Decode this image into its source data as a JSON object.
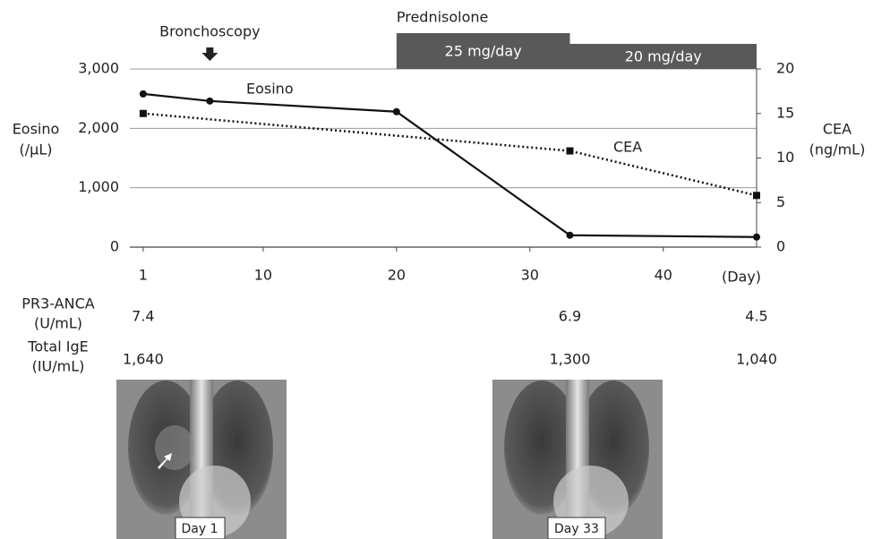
{
  "chart_data": {
    "type": "line",
    "x_label": "(Day)",
    "y_label": [
      "Eosino",
      "(/μL)"
    ],
    "y2_label": [
      "CEA",
      "(ng/mL)"
    ],
    "xlim": [
      0,
      47
    ],
    "xticks": [
      1,
      10,
      20,
      30,
      40
    ],
    "ylim": [
      0,
      3000
    ],
    "yticks": [
      0,
      {
        "value": 1000,
        "label": "1,000"
      },
      {
        "value": 2000,
        "label": "2,000"
      },
      {
        "value": 3000,
        "label": "3,000"
      }
    ],
    "y2lim": [
      0,
      20
    ],
    "y2ticks": [
      0,
      5,
      10,
      15,
      20
    ],
    "grid": true,
    "series": [
      {
        "name": "Eosino",
        "color": "#111111",
        "x": [
          1,
          6,
          20,
          33,
          47
        ],
        "values": [
          2580,
          2460,
          2280,
          200,
          170
        ],
        "line_style": "solid",
        "marker": "circle"
      },
      {
        "name": "CEA",
        "color": "#111111",
        "axis": "y2",
        "x": [
          1,
          33,
          47
        ],
        "values": [
          15,
          10.8,
          5.8
        ],
        "line_style": "dotted",
        "marker": "square"
      }
    ],
    "events": [
      {
        "label": "Bronchoscopy",
        "x": 6
      }
    ],
    "treatment": {
      "label": "Prednisolone",
      "color": "#595959",
      "periods": [
        {
          "label": "25 mg/day",
          "x": [
            20,
            33
          ]
        },
        {
          "label": "20 mg/day",
          "x": [
            33,
            47
          ]
        }
      ]
    },
    "rows": [
      {
        "label": [
          "PR3-ANCA",
          "(U/mL)"
        ],
        "x": [
          1,
          33,
          47
        ],
        "values": [
          7.4,
          6.9,
          4.5
        ]
      },
      {
        "label": [
          "Total IgE",
          "(IU/mL)"
        ],
        "x": [
          1,
          33,
          47
        ],
        "values": [
          1640,
          1300,
          1040
        ],
        "value_labels": [
          "1,640",
          "1,300",
          "1,040"
        ]
      }
    ],
    "images": [
      {
        "label": "Day 1"
      },
      {
        "label": "Day 33"
      }
    ]
  }
}
